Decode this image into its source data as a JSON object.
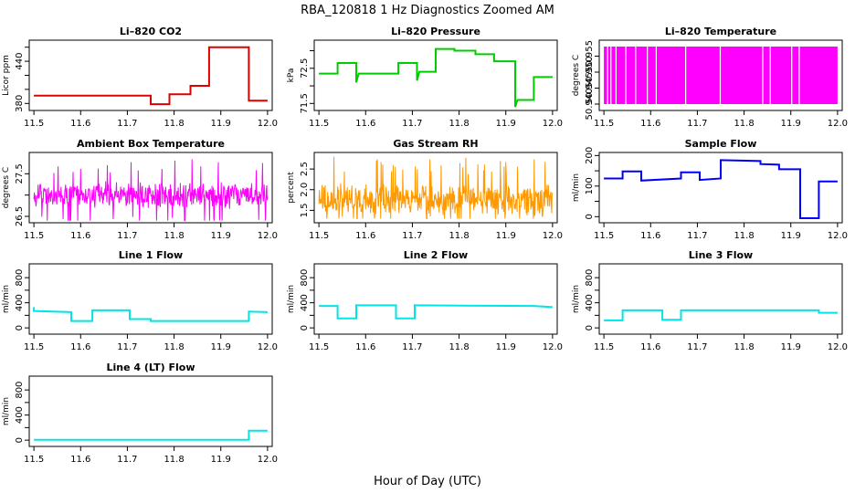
{
  "figure": {
    "title": "RBA_120818  1 Hz Diagnostics Zoomed AM",
    "xlabel": "Hour of Day (UTC)"
  },
  "chart_data": [
    {
      "type": "line",
      "title": "Li–820 CO2",
      "ylabel": "Licor ppm",
      "color": "#dd0000",
      "xlim": [
        11.49,
        12.01
      ],
      "ylim": [
        370,
        470
      ],
      "xticks": [
        11.5,
        11.6,
        11.7,
        11.8,
        11.9,
        12.0
      ],
      "xtick_labels": [
        "11.5",
        "11.6",
        "11.7",
        "11.8",
        "11.9",
        "12.0"
      ],
      "yticks": [
        380,
        400,
        420,
        440,
        460
      ],
      "ytick_labels": [
        "380",
        "",
        "",
        "440",
        ""
      ],
      "series": [
        {
          "x": [
            11.5,
            11.75,
            11.75,
            11.79,
            11.79,
            11.835,
            11.835,
            11.875,
            11.875,
            11.96,
            11.96,
            12.0
          ],
          "y": [
            391,
            391,
            379,
            379,
            393,
            393,
            405,
            405,
            460,
            460,
            384,
            384
          ]
        }
      ]
    },
    {
      "type": "line",
      "title": "Li–820 Pressure",
      "ylabel": "kPa",
      "color": "#00cc00",
      "xlim": [
        11.49,
        12.01
      ],
      "ylim": [
        71.3,
        73.3
      ],
      "xticks": [
        11.5,
        11.6,
        11.7,
        11.8,
        11.9,
        12.0
      ],
      "xtick_labels": [
        "11.5",
        "11.6",
        "11.7",
        "11.8",
        "11.9",
        "12.0"
      ],
      "yticks": [
        71.5,
        72.0,
        72.5,
        73.0
      ],
      "ytick_labels": [
        "71.5",
        "",
        "72.5",
        ""
      ],
      "series": [
        {
          "x": [
            11.5,
            11.54,
            11.54,
            11.58,
            11.58,
            11.585,
            11.585,
            11.67,
            11.67,
            11.71,
            11.71,
            11.715,
            11.715,
            11.75,
            11.75,
            11.79,
            11.79,
            11.835,
            11.835,
            11.875,
            11.875,
            11.92,
            11.92,
            11.925,
            11.925,
            11.96,
            11.96,
            12.0
          ],
          "y": [
            72.35,
            72.35,
            72.65,
            72.65,
            72.1,
            72.35,
            72.35,
            72.35,
            72.65,
            72.65,
            72.15,
            72.4,
            72.4,
            72.4,
            73.05,
            73.05,
            73.0,
            73.0,
            72.9,
            72.9,
            72.7,
            72.7,
            71.4,
            71.6,
            71.6,
            71.6,
            72.25,
            72.25
          ]
        }
      ]
    },
    {
      "type": "line",
      "title": "Li–820 Temperature",
      "ylabel": "degrees C",
      "color": "#ff00ff",
      "xlim": [
        11.49,
        12.01
      ],
      "ylim": [
        50.938,
        50.96
      ],
      "xticks": [
        11.5,
        11.6,
        11.7,
        11.8,
        11.9,
        12.0
      ],
      "xtick_labels": [
        "11.5",
        "11.6",
        "11.7",
        "11.8",
        "11.9",
        "12.0"
      ],
      "yticks": [
        50.94,
        50.945,
        50.95,
        50.955
      ],
      "ytick_labels": [
        "50.940",
        "50.945",
        "50.950",
        "50.955"
      ],
      "series": [
        {
          "low": 50.94,
          "high": 50.958,
          "gaps": [
            11.508,
            11.515,
            11.526,
            11.547,
            11.568,
            11.593,
            11.612,
            11.675,
            11.749,
            11.84,
            11.856,
            11.902,
            11.918
          ]
        }
      ]
    },
    {
      "type": "line",
      "title": "Ambient Box Temperature",
      "ylabel": "degrees C",
      "color": "#ff00ff",
      "xlim": [
        11.49,
        12.01
      ],
      "ylim": [
        26.35,
        28.0
      ],
      "xticks": [
        11.5,
        11.6,
        11.7,
        11.8,
        11.9,
        12.0
      ],
      "xtick_labels": [
        "11.5",
        "11.6",
        "11.7",
        "11.8",
        "11.9",
        "12.0"
      ],
      "yticks": [
        26.5,
        27.0,
        27.5
      ],
      "ytick_labels": [
        "26.5",
        "",
        "27.5"
      ],
      "series": [
        {
          "center": 27.0,
          "amplitude": 0.5,
          "min": 26.4,
          "max": 27.85
        }
      ]
    },
    {
      "type": "line",
      "title": "Gas Stream RH",
      "ylabel": "percent",
      "color": "#ff9900",
      "xlim": [
        11.49,
        12.01
      ],
      "ylim": [
        1.2,
        2.9
      ],
      "xticks": [
        11.5,
        11.6,
        11.7,
        11.8,
        11.9,
        12.0
      ],
      "xtick_labels": [
        "11.5",
        "11.6",
        "11.7",
        "11.8",
        "11.9",
        "12.0"
      ],
      "yticks": [
        1.5,
        2.0,
        2.5
      ],
      "ytick_labels": [
        "1.5",
        "2.0",
        "2.5"
      ],
      "series": [
        {
          "center": 1.75,
          "amplitude": 0.6,
          "min": 1.3,
          "max": 2.8
        }
      ]
    },
    {
      "type": "line",
      "title": "Sample Flow",
      "ylabel": "ml/min",
      "color": "#0000ff",
      "xlim": [
        11.49,
        12.01
      ],
      "ylim": [
        -20,
        210
      ],
      "xticks": [
        11.5,
        11.6,
        11.7,
        11.8,
        11.9,
        12.0
      ],
      "xtick_labels": [
        "11.5",
        "11.6",
        "11.7",
        "11.8",
        "11.9",
        "12.0"
      ],
      "yticks": [
        0,
        50,
        100,
        150,
        200
      ],
      "ytick_labels": [
        "0",
        "",
        "100",
        "",
        "200"
      ],
      "series": [
        {
          "x": [
            11.5,
            11.54,
            11.54,
            11.58,
            11.58,
            11.665,
            11.665,
            11.705,
            11.705,
            11.75,
            11.75,
            11.835,
            11.835,
            11.875,
            11.875,
            11.92,
            11.92,
            11.96,
            11.96,
            12.0
          ],
          "y": [
            125,
            125,
            148,
            148,
            118,
            125,
            145,
            145,
            120,
            125,
            185,
            182,
            172,
            170,
            155,
            155,
            -5,
            -5,
            115,
            115
          ]
        }
      ]
    },
    {
      "type": "line",
      "title": "Line 1 Flow",
      "ylabel": "ml/min",
      "color": "#00e5e5",
      "xlim": [
        11.49,
        12.01
      ],
      "ylim": [
        -100,
        1020
      ],
      "xticks": [
        11.5,
        11.6,
        11.7,
        11.8,
        11.9,
        12.0
      ],
      "xtick_labels": [
        "11.5",
        "11.6",
        "11.7",
        "11.8",
        "11.9",
        "12.0"
      ],
      "yticks": [
        0,
        200,
        400,
        600,
        800
      ],
      "ytick_labels": [
        "0",
        "",
        "400",
        "",
        "800"
      ],
      "series": [
        {
          "x": [
            11.5,
            11.5,
            11.58,
            11.58,
            11.625,
            11.625,
            11.705,
            11.705,
            11.75,
            11.75,
            11.96,
            11.96,
            12.0
          ],
          "y": [
            330,
            270,
            250,
            110,
            110,
            280,
            280,
            140,
            140,
            110,
            110,
            260,
            250
          ]
        }
      ]
    },
    {
      "type": "line",
      "title": "Line 2 Flow",
      "ylabel": "ml/min",
      "color": "#00e5e5",
      "xlim": [
        11.49,
        12.01
      ],
      "ylim": [
        -100,
        1020
      ],
      "xticks": [
        11.5,
        11.6,
        11.7,
        11.8,
        11.9,
        12.0
      ],
      "xtick_labels": [
        "11.5",
        "11.6",
        "11.7",
        "11.8",
        "11.9",
        "12.0"
      ],
      "yticks": [
        0,
        200,
        400,
        600,
        800
      ],
      "ytick_labels": [
        "0",
        "",
        "400",
        "",
        "800"
      ],
      "series": [
        {
          "x": [
            11.5,
            11.54,
            11.54,
            11.58,
            11.58,
            11.665,
            11.665,
            11.705,
            11.705,
            11.96,
            12.0
          ],
          "y": [
            350,
            350,
            150,
            150,
            360,
            360,
            150,
            150,
            360,
            350,
            330
          ]
        }
      ]
    },
    {
      "type": "line",
      "title": "Line 3 Flow",
      "ylabel": "ml/min",
      "color": "#00e5e5",
      "xlim": [
        11.49,
        12.01
      ],
      "ylim": [
        -100,
        1020
      ],
      "xticks": [
        11.5,
        11.6,
        11.7,
        11.8,
        11.9,
        12.0
      ],
      "xtick_labels": [
        "11.5",
        "11.6",
        "11.7",
        "11.8",
        "11.9",
        "12.0"
      ],
      "yticks": [
        0,
        200,
        400,
        600,
        800
      ],
      "ytick_labels": [
        "0",
        "",
        "400",
        "",
        "800"
      ],
      "series": [
        {
          "x": [
            11.5,
            11.54,
            11.54,
            11.625,
            11.625,
            11.665,
            11.665,
            11.96,
            11.96,
            12.0
          ],
          "y": [
            120,
            120,
            280,
            280,
            130,
            130,
            280,
            280,
            240,
            240
          ]
        }
      ]
    },
    {
      "type": "line",
      "title": "Line 4 (LT) Flow",
      "ylabel": "ml/min",
      "color": "#00e5e5",
      "xlim": [
        11.49,
        12.01
      ],
      "ylim": [
        -100,
        1020
      ],
      "xticks": [
        11.5,
        11.6,
        11.7,
        11.8,
        11.9,
        12.0
      ],
      "xtick_labels": [
        "11.5",
        "11.6",
        "11.7",
        "11.8",
        "11.9",
        "12.0"
      ],
      "yticks": [
        0,
        200,
        400,
        600,
        800
      ],
      "ytick_labels": [
        "0",
        "",
        "400",
        "",
        "800"
      ],
      "series": [
        {
          "x": [
            11.5,
            11.96,
            11.96,
            12.0
          ],
          "y": [
            5,
            5,
            150,
            150
          ]
        }
      ]
    }
  ]
}
